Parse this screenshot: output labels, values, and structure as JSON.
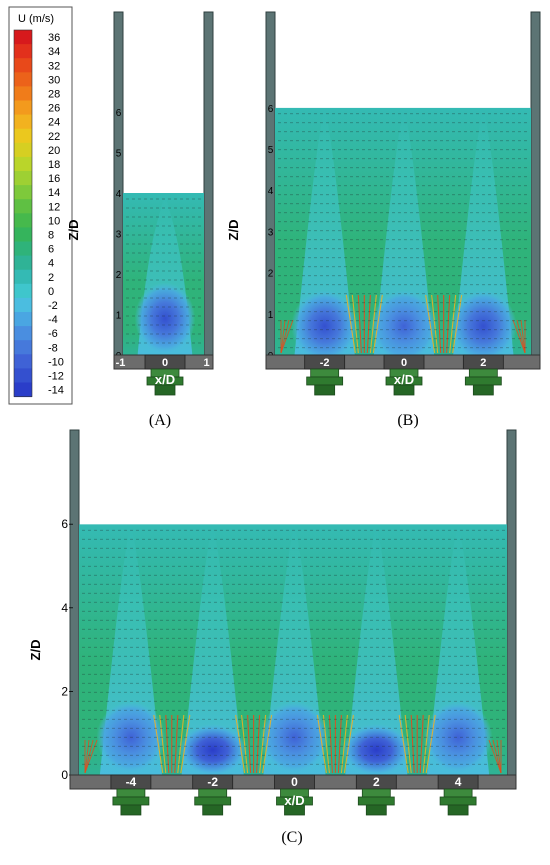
{
  "legend": {
    "title": "U (m/s)",
    "levels": [
      "36",
      "34",
      "32",
      "30",
      "28",
      "26",
      "24",
      "22",
      "20",
      "18",
      "16",
      "14",
      "12",
      "10",
      "8",
      "6",
      "4",
      "2",
      "0",
      "-2",
      "-4",
      "-6",
      "-8",
      "-10",
      "-12",
      "-14"
    ],
    "colors": [
      "#d7191c",
      "#e2301c",
      "#e8491a",
      "#ec621a",
      "#f07c1a",
      "#f39a1d",
      "#f2b21f",
      "#ebc81e",
      "#d6cf22",
      "#bad52a",
      "#9ed033",
      "#7ec93b",
      "#5fc043",
      "#46b94c",
      "#35b45c",
      "#2fb37a",
      "#2fb396",
      "#34bab4",
      "#3fc6cc",
      "#4bbde0",
      "#4aa6e2",
      "#4a8ee0",
      "#4679db",
      "#3f62d6",
      "#3450cf",
      "#2a3dc9"
    ]
  },
  "chart_data": [
    {
      "type": "contour-vector",
      "panel_label": "(A)",
      "xlabel": "x/D",
      "ylabel": "Z/D",
      "x_ticks": [
        "-1",
        "0",
        "1"
      ],
      "y_ticks": [
        "0",
        "1",
        "2",
        "3",
        "4",
        "5",
        "6"
      ],
      "xlim": [
        -1,
        1
      ],
      "ylim": [
        0,
        6
      ],
      "field_top": 4,
      "nozzles": [
        0
      ],
      "recirculation_zones": [
        {
          "x": 0.0,
          "z": 0.9,
          "u_min": -12
        }
      ]
    },
    {
      "type": "contour-vector",
      "panel_label": "(B)",
      "xlabel": "x/D",
      "ylabel": "Z/D",
      "x_ticks": [
        "-2",
        "0",
        "2"
      ],
      "y_ticks": [
        "0",
        "1",
        "2",
        "3",
        "4",
        "5",
        "6"
      ],
      "xlim": [
        -3,
        3
      ],
      "ylim": [
        0,
        6
      ],
      "field_top": 6,
      "nozzles": [
        -2,
        0,
        2
      ],
      "recirculation_zones": [
        {
          "x": -2.0,
          "z": 0.7,
          "u_min": -12
        },
        {
          "x": 0.0,
          "z": 0.7,
          "u_min": -10
        },
        {
          "x": 2.0,
          "z": 0.7,
          "u_min": -12
        }
      ]
    },
    {
      "type": "contour-vector",
      "panel_label": "(C)",
      "xlabel": "x/D",
      "ylabel": "Z/D",
      "x_ticks": [
        "-4",
        "-2",
        "0",
        "2",
        "4"
      ],
      "y_ticks": [
        "0",
        "2",
        "4",
        "6"
      ],
      "xlim": [
        -5,
        5
      ],
      "ylim": [
        0,
        6
      ],
      "field_top": 6,
      "nozzles": [
        -4,
        -2,
        0,
        2,
        4
      ],
      "recirculation_zones": [
        {
          "x": -4.0,
          "z": 0.9,
          "u_min": -10
        },
        {
          "x": -2.0,
          "z": 0.6,
          "u_min": -14
        },
        {
          "x": 0.0,
          "z": 0.9,
          "u_min": -10
        },
        {
          "x": 2.0,
          "z": 0.6,
          "u_min": -14
        },
        {
          "x": 4.0,
          "z": 0.9,
          "u_min": -10
        }
      ]
    }
  ]
}
